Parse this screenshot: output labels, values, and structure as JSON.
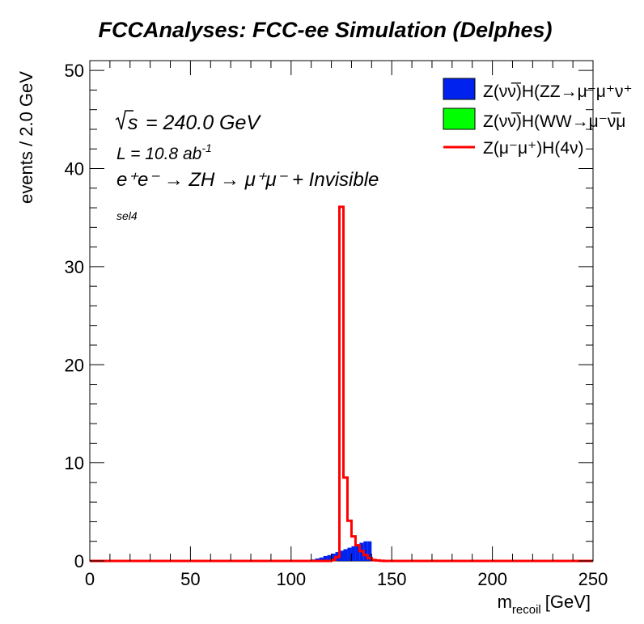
{
  "chart_data": {
    "type": "histogram",
    "title": "FCCAnalyses: FCC-ee Simulation (Delphes)",
    "xlabel_main": "m",
    "xlabel_sub": "recoil",
    "xlabel_unit": "[GeV]",
    "ylabel": "events / 2.0 GeV",
    "xlim": [
      0,
      250
    ],
    "ylim": [
      0,
      51
    ],
    "x_ticks": [
      "0",
      "50",
      "100",
      "150",
      "200",
      "250"
    ],
    "y_ticks": [
      "0",
      "10",
      "20",
      "30",
      "40",
      "50"
    ],
    "bin_width": 2,
    "annotations": {
      "sqrt_s": "= 240.0 GeV",
      "lumi_prefix": "L = 10.8 ab",
      "lumi_exp": "-1",
      "process": "e⁺e⁻ → ZH → μ⁺μ⁻ + Invisible",
      "selection": "sel4"
    },
    "legend": [
      {
        "label": "Z(νν̅)H(ZZ→μ⁻μ⁺ν⁺",
        "style": "fill",
        "color": "#0022ee"
      },
      {
        "label": "Z(νν̅)H(WW→μ⁻ν̅μ",
        "style": "fill",
        "color": "#00ff00"
      },
      {
        "label": "Z(μ⁻μ⁺)H(4ν)",
        "style": "line",
        "color": "#ff0000"
      }
    ],
    "series": [
      {
        "name": "Z(νν̅)H(ZZ→μ⁻μ⁺ν⁺",
        "style": "filled",
        "color": "#0022ee",
        "x_start": [
          108,
          110,
          112,
          114,
          116,
          118,
          120,
          122,
          124,
          126,
          128,
          130,
          132,
          134,
          136,
          138
        ],
        "values": [
          0.05,
          0.15,
          0.25,
          0.35,
          0.5,
          0.6,
          0.75,
          0.9,
          1.05,
          1.2,
          1.35,
          1.5,
          1.7,
          1.85,
          2.0,
          2.0
        ]
      },
      {
        "name": "Z(νν̅)H(WW→μ⁻ν̅μ",
        "style": "filled",
        "color": "#00ff00",
        "x_start": [],
        "values": []
      },
      {
        "name": "Z(μ⁻μ⁺)H(4ν)",
        "style": "step",
        "color": "#ff0000",
        "x_start": [
          120,
          122,
          124,
          126,
          128,
          130,
          132,
          134,
          136,
          138,
          140,
          142,
          144,
          146
        ],
        "values": [
          0.1,
          0.4,
          36.1,
          8.5,
          4.1,
          2.5,
          1.6,
          1.0,
          0.6,
          0.3,
          0.1,
          0.05,
          0.02,
          0.0
        ]
      }
    ]
  }
}
